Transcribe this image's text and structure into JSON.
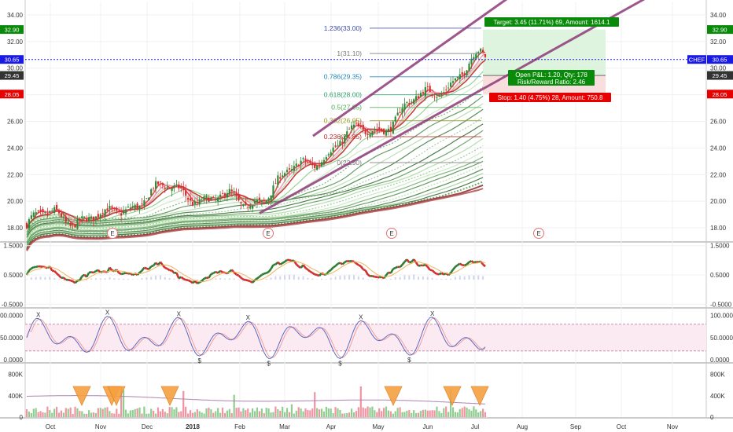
{
  "chart_data": {
    "type": "candlestick",
    "symbol": "CHEF",
    "colors": {
      "up": "#2e8b3a",
      "down": "#d32f2f",
      "channel": "#8e3a78",
      "last_price_line": "#1a1ae6",
      "target_zone": "#d8f2d8",
      "stop_zone": "#f8d8d8",
      "tag_green": "#0a8a0a",
      "tag_red": "#e60000",
      "tag_gray": "#333333",
      "tag_blue": "#1a1ae6"
    },
    "x_axis": {
      "labels": [
        "Oct",
        "Nov",
        "Dec",
        "2018",
        "Feb",
        "Mar",
        "Apr",
        "May",
        "Jun",
        "Jul",
        "Aug",
        "Sep",
        "Oct",
        "Nov"
      ]
    },
    "price_axis": {
      "range": [
        17,
        35
      ],
      "ticks": [
        "34.00",
        "32.00",
        "30.00",
        "28.00",
        "26.00",
        "24.00",
        "22.00",
        "20.00",
        "18.00"
      ],
      "tags": [
        {
          "label": "32.90",
          "value": 32.9,
          "kind": "green"
        },
        {
          "label": "30.65",
          "value": 30.65,
          "kind": "blue"
        },
        {
          "label": "29.45",
          "value": 29.45,
          "kind": "gray"
        },
        {
          "label": "28.05",
          "value": 28.05,
          "kind": "red"
        }
      ],
      "symbol_tag": "CHEF"
    },
    "last_price": 30.65,
    "fibonacci": [
      {
        "label": "1.236(33.00)",
        "value": 33.0,
        "color": "#3949ab"
      },
      {
        "label": "1(31.10)",
        "value": 31.1,
        "color": "#777777"
      },
      {
        "label": "0.786(29.35)",
        "value": 29.35,
        "color": "#1e88b8"
      },
      {
        "label": "0.618(28.00)",
        "value": 28.0,
        "color": "#2e9e6a"
      },
      {
        "label": "0.5(27.05)",
        "value": 27.05,
        "color": "#4caf50"
      },
      {
        "label": "0.382(26.05)",
        "value": 26.05,
        "color": "#9e9d24"
      },
      {
        "label": "0.236(24.85)",
        "value": 24.85,
        "color": "#c62828"
      },
      {
        "label": "0(22.90)",
        "value": 22.9,
        "color": "#777777"
      }
    ],
    "position": {
      "target_label": "Target: 3.45 (11.71%) 69, Amount: 1614.1",
      "pnl_label": "Open P&L: 1.20, Qty: 178",
      "rr_label": "Risk/Reward Ratio: 2.46",
      "stop_label": "Stop: 1.40 (4.75%) 28, Amount: 750.8",
      "entry": 29.45,
      "target": 32.9,
      "stop": 28.05
    },
    "earnings_marker": "E",
    "indicator1": {
      "ticks": [
        "1.5000",
        "0.5000",
        "-0.5000"
      ],
      "range": [
        -0.6,
        1.6
      ]
    },
    "indicator2": {
      "ticks": [
        "100.0000",
        "50.0000",
        "0.0000"
      ],
      "range": [
        -5,
        115
      ],
      "sell_marker": "X",
      "buy_marker": "$"
    },
    "volume": {
      "ticks": [
        "800K",
        "400K",
        "0"
      ],
      "range": [
        0,
        1000000
      ]
    },
    "monthly_closes": [
      {
        "month": "Oct",
        "value": 19.0
      },
      {
        "month": "Nov",
        "value": 18.6
      },
      {
        "month": "Dec",
        "value": 20.8
      },
      {
        "month": "2018",
        "value": 20.5
      },
      {
        "month": "Feb",
        "value": 19.7
      },
      {
        "month": "Mar",
        "value": 21.9
      },
      {
        "month": "Apr",
        "value": 24.3
      },
      {
        "month": "May",
        "value": 25.8
      },
      {
        "month": "Jun",
        "value": 28.2
      },
      {
        "month": "Jul",
        "value": 30.65
      }
    ]
  }
}
